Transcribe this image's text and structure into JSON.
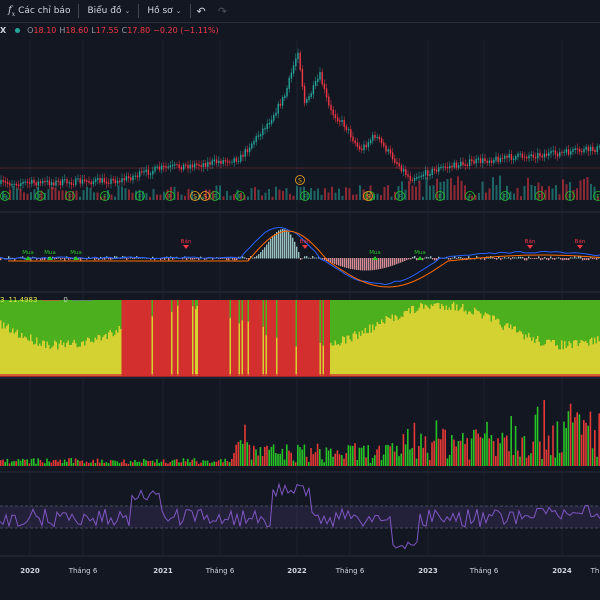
{
  "toolbar": {
    "indicators_label": "Các chỉ báo",
    "chart_label": "Biểu đồ",
    "profile_label": "Hồ sơ"
  },
  "legend": {
    "symbol": "X",
    "o_label": "O",
    "o_value": "18.10",
    "h_label": "H",
    "h_value": "18.60",
    "l_label": "L",
    "l_value": "17.55",
    "c_label": "C",
    "c_value": "17.80",
    "change": "−0.20 (−1.11%)"
  },
  "signals": {
    "buy": "Mua",
    "sell": "Bán",
    "f": "F",
    "s": "S"
  },
  "indicator": {
    "a": "3",
    "b": "11.4983",
    "c": "0"
  },
  "xaxis": {
    "labels": [
      "2020",
      "Tháng 6",
      "2021",
      "Tháng 6",
      "2022",
      "Tháng 6",
      "2023",
      "Tháng 6",
      "2024",
      "Th"
    ]
  },
  "colors": {
    "up": "#26a69a",
    "down": "#f23645",
    "green": "#26c126",
    "yellow": "#e8e94a",
    "rsi": "#7e57c2",
    "bg": "#131722"
  }
}
